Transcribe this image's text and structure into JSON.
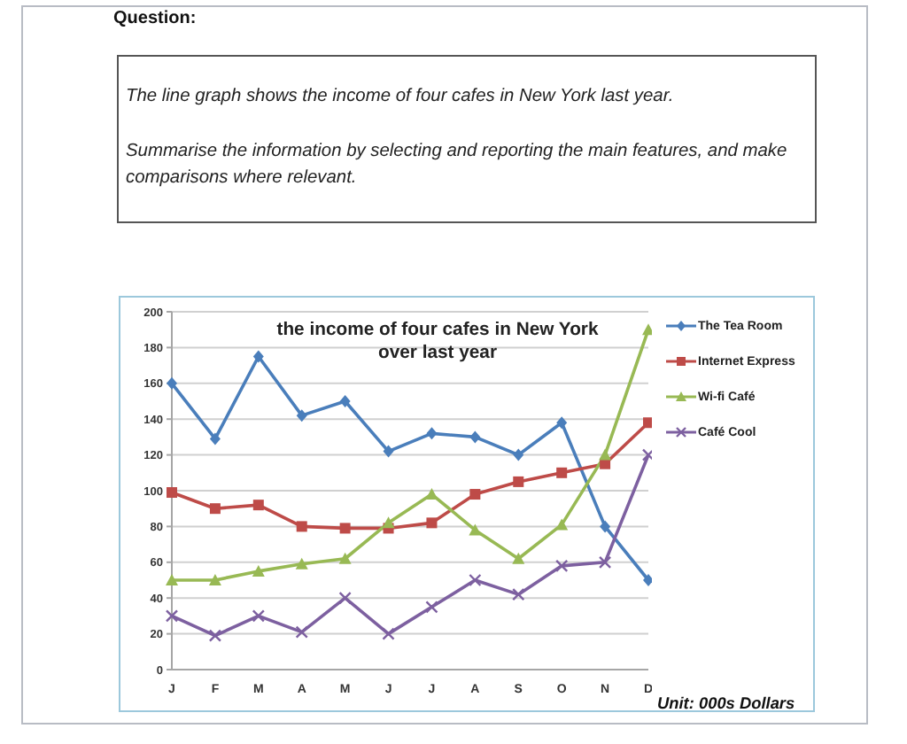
{
  "chart_data": {
    "type": "line",
    "title": "the income of four cafes in New York over last year",
    "annotations": [
      "Question:",
      "The line graph shows the income of four cafes in New York last year.",
      "Summarise the information by selecting and reporting the main features, and make comparisons where relevant.",
      "Unit: 000s Dollars"
    ],
    "categories": [
      "J",
      "F",
      "M",
      "A",
      "M",
      "J",
      "J",
      "A",
      "S",
      "O",
      "N",
      "D"
    ],
    "series": [
      {
        "name": "The Tea Room",
        "color": "#4a7ebb",
        "marker": "diamond",
        "values": [
          160,
          129,
          175,
          142,
          150,
          122,
          132,
          130,
          120,
          138,
          80,
          50
        ]
      },
      {
        "name": "Internet Express",
        "color": "#be4b48",
        "marker": "square",
        "values": [
          99,
          90,
          92,
          80,
          79,
          79,
          82,
          98,
          105,
          110,
          115,
          138
        ]
      },
      {
        "name": "Wi-fi Café",
        "color": "#98b954",
        "marker": "triangle",
        "values": [
          50,
          50,
          55,
          59,
          62,
          82,
          98,
          78,
          62,
          81,
          120,
          190
        ]
      },
      {
        "name": "Café Cool",
        "color": "#7d60a0",
        "marker": "cross",
        "values": [
          30,
          19,
          30,
          21,
          40,
          20,
          35,
          50,
          42,
          58,
          60,
          120
        ]
      }
    ],
    "ylim": [
      0,
      200
    ],
    "yticks": [
      0,
      20,
      40,
      60,
      80,
      100,
      120,
      140,
      160,
      180,
      200
    ],
    "grid": "y",
    "legend": "top right"
  }
}
